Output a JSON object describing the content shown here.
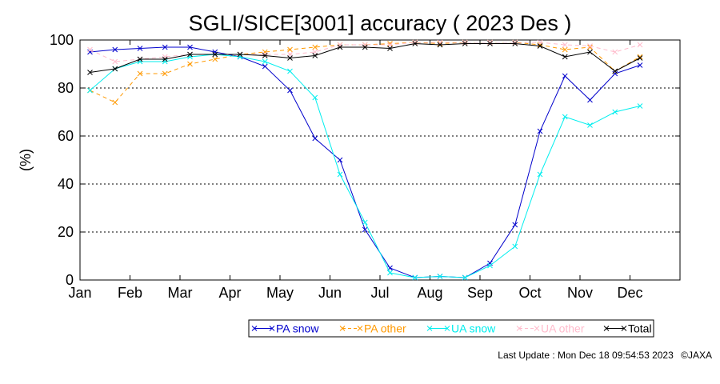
{
  "chart_data": {
    "type": "line",
    "title": "SGLI/SICE[3001] accuracy ( 2023 Des )",
    "ylabel": "(%)",
    "xlabel": "",
    "ylim": [
      0,
      100
    ],
    "yticks": [
      0,
      20,
      40,
      60,
      80,
      100
    ],
    "xlim": [
      1,
      13
    ],
    "month_ticks": [
      {
        "label": "Jan",
        "x": 1
      },
      {
        "label": "Feb",
        "x": 2
      },
      {
        "label": "Mar",
        "x": 3
      },
      {
        "label": "Apr",
        "x": 4
      },
      {
        "label": "May",
        "x": 5
      },
      {
        "label": "Jun",
        "x": 6
      },
      {
        "label": "Jul",
        "x": 7
      },
      {
        "label": "Aug",
        "x": 8
      },
      {
        "label": "Sep",
        "x": 9
      },
      {
        "label": "Oct",
        "x": 10
      },
      {
        "label": "Nov",
        "x": 11
      },
      {
        "label": "Dec",
        "x": 12
      }
    ],
    "grid": "horizontal dotted",
    "legend_position": "bottom",
    "x": [
      1.2,
      1.7,
      2.2,
      2.7,
      3.2,
      3.7,
      4.2,
      4.7,
      5.2,
      5.7,
      6.2,
      6.7,
      7.2,
      7.7,
      8.2,
      8.7,
      9.2,
      9.7,
      10.2,
      10.7,
      11.2,
      11.7,
      12.2
    ],
    "series": [
      {
        "name": "PA snow",
        "color": "#0000cc",
        "dash": "solid",
        "values": [
          95,
          96,
          96.5,
          97,
          97,
          95,
          93,
          89,
          79,
          59,
          50,
          21,
          5,
          1,
          1.5,
          1,
          7,
          23,
          62,
          85,
          75,
          86,
          89.5
        ]
      },
      {
        "name": "PA other",
        "color": "#ff9900",
        "dash": "dashed",
        "values": [
          79,
          74,
          86,
          86,
          90,
          92,
          94,
          95,
          96,
          97,
          98,
          98,
          98.5,
          99,
          98.5,
          99,
          99,
          99,
          98,
          96,
          97,
          87,
          93
        ]
      },
      {
        "name": "UA snow",
        "color": "#00eeee",
        "dash": "solid",
        "values": [
          79,
          88,
          91,
          91,
          93,
          94,
          93,
          91,
          87,
          76,
          44,
          24,
          3,
          1,
          1.5,
          1,
          6,
          14,
          44,
          68,
          64.5,
          70,
          72.5
        ]
      },
      {
        "name": "UA other",
        "color": "#ffbbcc",
        "dash": "dashed",
        "values": [
          96,
          91,
          92,
          93,
          94,
          94,
          94,
          94,
          94,
          95,
          98,
          98,
          98,
          99,
          99,
          99,
          99,
          99,
          99,
          98,
          97.5,
          95,
          98
        ]
      },
      {
        "name": "Total",
        "color": "#000000",
        "dash": "solid",
        "values": [
          86.5,
          88,
          92,
          92,
          94,
          94,
          94,
          93.5,
          92.5,
          93.5,
          97,
          97,
          96.5,
          98.5,
          98,
          98.5,
          98.5,
          98.5,
          97.5,
          93,
          95,
          87,
          92.5
        ]
      }
    ]
  },
  "footer": {
    "update_text": "Last Update : Mon Dec 18 09:54:53 2023",
    "copyright": "©JAXA"
  }
}
